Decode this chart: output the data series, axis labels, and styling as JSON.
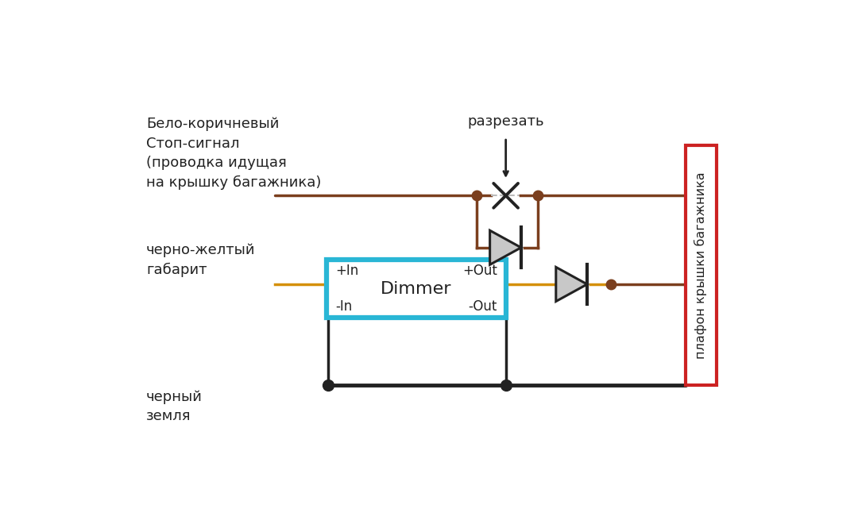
{
  "bg_color": "#ffffff",
  "brown": "#7B3F1E",
  "orange": "#D4900A",
  "black": "#222222",
  "blue": "#29B6D5",
  "red": "#CC2222",
  "label_stop": "Бело-коричневый\nСтоп-сигнал\n(проводка идущая\nна крышку багажника)",
  "label_dim": "черно-желтый\nгабарит",
  "label_ground": "черный\nземля",
  "label_cut": "разрезать",
  "label_plafonchik": "плафон крышки багажника",
  "dimmer_label": "Dimmer",
  "plus_in": "+In",
  "minus_in": "-In",
  "plus_out": "+Out",
  "minus_out": "-Out"
}
